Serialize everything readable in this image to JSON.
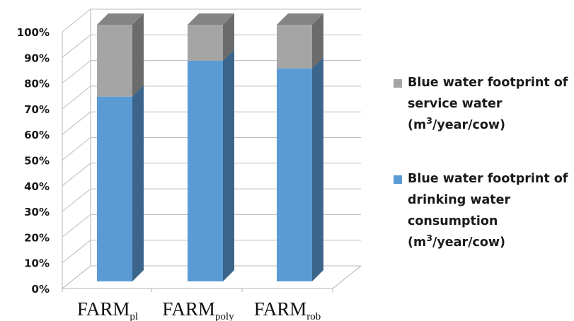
{
  "chart_data": {
    "type": "bar",
    "stacked": true,
    "percent_stacked": true,
    "categories": [
      "FARM",
      "FARM",
      "FARM"
    ],
    "category_subscripts": [
      "pl",
      "poly",
      "rob"
    ],
    "series": [
      {
        "name_lines": [
          "Blue water footprint of",
          "drinking water",
          "consumption"
        ],
        "unit_base": "(m",
        "unit_sup": "3",
        "unit_rest": "/year/cow)",
        "values": [
          72,
          86,
          83
        ],
        "color": "#5b9bd5"
      },
      {
        "name_lines": [
          "Blue water footprint of",
          "service water"
        ],
        "unit_base": "(m",
        "unit_sup": "3",
        "unit_rest": "/year/cow)",
        "values": [
          28,
          14,
          17
        ],
        "color": "#a5a5a5"
      }
    ],
    "y_ticks": [
      "0%",
      "10%",
      "20%",
      "30%",
      "40%",
      "50%",
      "60%",
      "70%",
      "80%",
      "90%",
      "100%"
    ],
    "ylim": [
      0,
      100
    ],
    "grid": true,
    "legend": "right",
    "title": "",
    "xlabel": "",
    "ylabel": ""
  }
}
